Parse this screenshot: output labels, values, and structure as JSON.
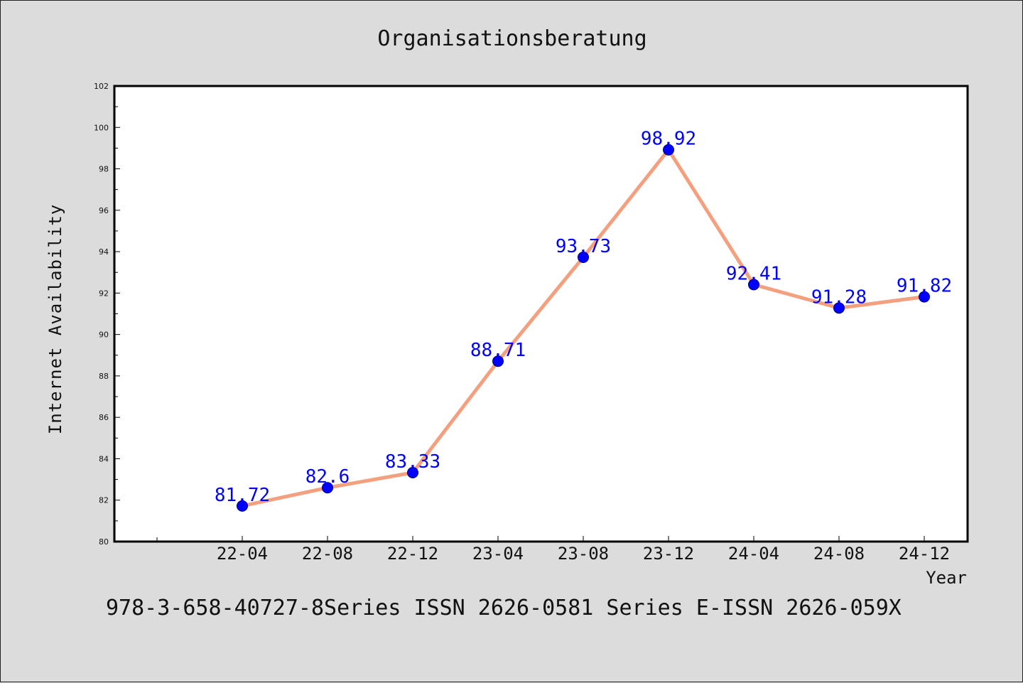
{
  "footer_text": "978-3-658-40727-8Series ISSN 2626-0581 Series E-ISSN 2626-059X",
  "chart_data": {
    "type": "line",
    "title": "Organisationsberatung",
    "xlabel": "Year",
    "ylabel": "Internet Availability",
    "categories": [
      "22-04",
      "22-08",
      "22-12",
      "23-04",
      "23-08",
      "23-12",
      "24-04",
      "24-08",
      "24-12"
    ],
    "series": [
      {
        "values": [
          81.72,
          82.6,
          83.33,
          88.71,
          93.73,
          98.92,
          92.41,
          91.28,
          91.82
        ],
        "labels": [
          "81.72",
          "82.6",
          "83.33",
          "88.71",
          "93.73",
          "98.92",
          "92.41",
          "91.28",
          "91.82"
        ]
      }
    ],
    "ylim": [
      80,
      102
    ],
    "yticks": [
      80,
      82,
      84,
      86,
      88,
      90,
      92,
      94,
      96,
      98,
      100,
      102
    ],
    "grid": false,
    "line_color": "#f4a07e",
    "marker_color": "#0000ff",
    "label_color": "#0000ff",
    "background_color": "#dcdcdc",
    "plot_background_color": "#ffffff"
  }
}
